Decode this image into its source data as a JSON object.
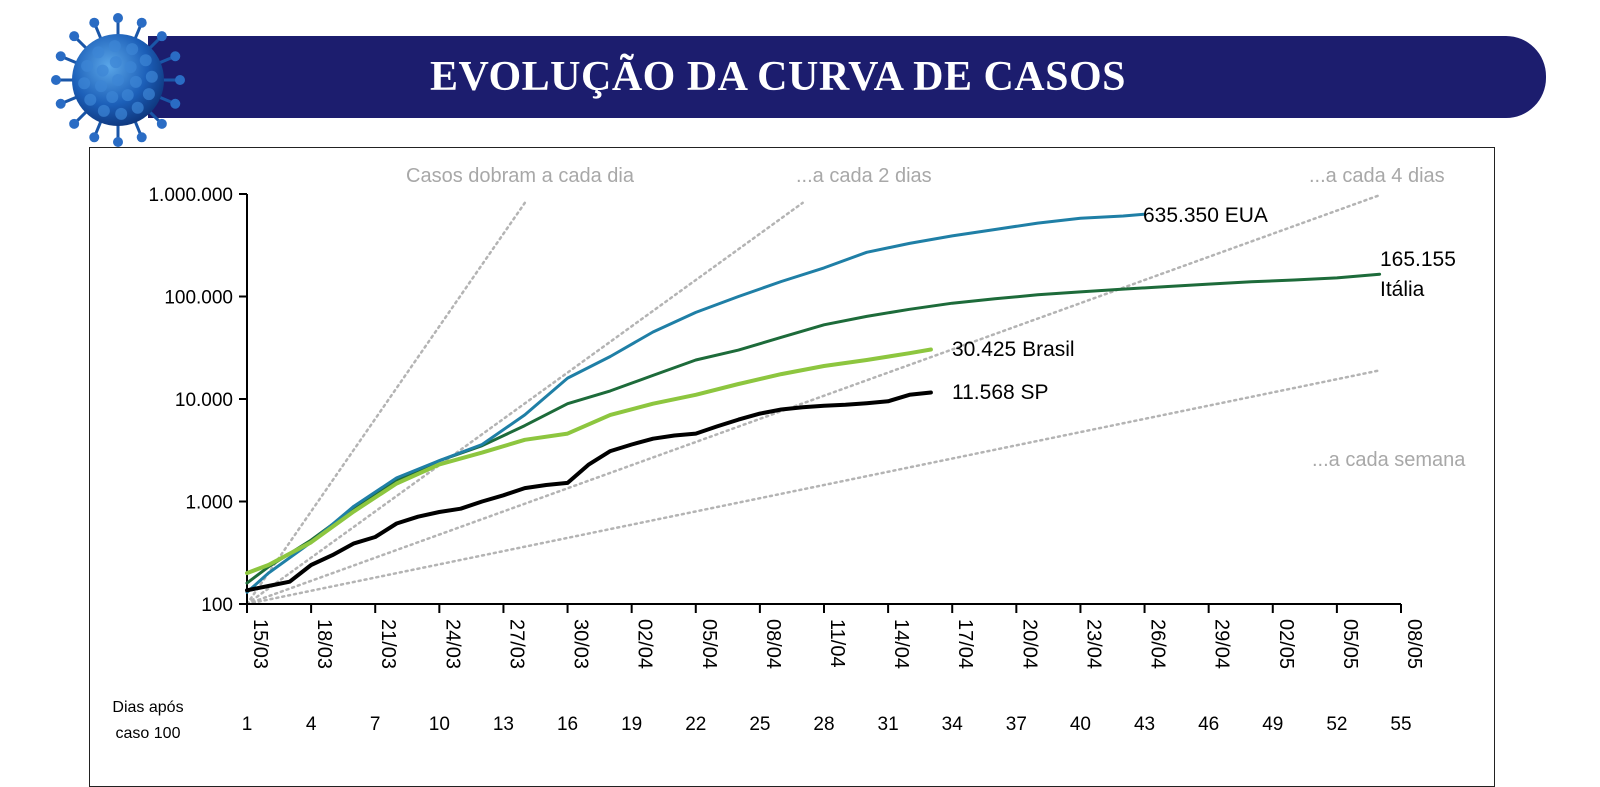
{
  "header": {
    "title": "EVOLUÇÃO DA CURVA DE CASOS",
    "icon": "coronavirus-icon",
    "banner_color": "#1c1d6e"
  },
  "chart_data": {
    "type": "line",
    "yscale": "log",
    "ylim": [
      100,
      1000000
    ],
    "y_ticks": [
      {
        "value": 100,
        "label": "100"
      },
      {
        "value": 1000,
        "label": "1.000"
      },
      {
        "value": 10000,
        "label": "10.000"
      },
      {
        "value": 100000,
        "label": "100.000"
      },
      {
        "value": 1000000,
        "label": "1.000.000"
      }
    ],
    "x_tick_days": [
      1,
      4,
      7,
      10,
      13,
      16,
      19,
      22,
      25,
      28,
      31,
      34,
      37,
      40,
      43,
      46,
      49,
      52,
      55
    ],
    "x_tick_dates": [
      "15/03",
      "18/03",
      "21/03",
      "24/03",
      "27/03",
      "30/03",
      "02/04",
      "05/04",
      "08/04",
      "11/04",
      "14/04",
      "17/04",
      "20/04",
      "23/04",
      "26/04",
      "29/04",
      "02/05",
      "05/05",
      "08/05"
    ],
    "xlim": [
      1,
      55
    ],
    "days_label_line1": "Dias após",
    "days_label_line2": "caso 100",
    "series": [
      {
        "name": "EUA",
        "label_value": "635.350",
        "label_name": "EUA",
        "color": "#1f7fa6",
        "x": [
          1,
          2,
          4,
          6,
          8,
          10,
          12,
          14,
          16,
          18,
          20,
          22,
          24,
          26,
          28,
          30,
          32,
          34,
          36,
          38,
          40,
          42,
          43
        ],
        "values": [
          130,
          200,
          400,
          900,
          1700,
          2500,
          3600,
          7000,
          16000,
          26000,
          45000,
          70000,
          100000,
          140000,
          190000,
          270000,
          330000,
          390000,
          450000,
          520000,
          580000,
          610000,
          635350
        ]
      },
      {
        "name": "Itália",
        "label_value": "165.155",
        "label_name": "Itália",
        "color": "#1d6b3a",
        "x": [
          1,
          2,
          4,
          6,
          8,
          10,
          12,
          14,
          16,
          18,
          20,
          22,
          24,
          26,
          28,
          30,
          32,
          34,
          36,
          38,
          40,
          42,
          44,
          46,
          48,
          50,
          52,
          54
        ],
        "values": [
          160,
          230,
          420,
          850,
          1600,
          2500,
          3500,
          5500,
          9000,
          12000,
          17000,
          24000,
          30000,
          40000,
          53000,
          64000,
          75000,
          86000,
          95000,
          104000,
          111000,
          118000,
          125000,
          132000,
          139000,
          145000,
          152000,
          165155
        ]
      },
      {
        "name": "Brasil",
        "label_value": "30.425",
        "label_name": "Brasil",
        "color": "#8dc63f",
        "x": [
          1,
          2,
          4,
          6,
          8,
          10,
          12,
          14,
          16,
          18,
          20,
          22,
          24,
          26,
          28,
          30,
          32,
          33
        ],
        "values": [
          200,
          240,
          400,
          800,
          1500,
          2300,
          3000,
          4000,
          4600,
          7000,
          9000,
          11000,
          14000,
          17500,
          21000,
          24000,
          28000,
          30425
        ]
      },
      {
        "name": "SP",
        "label_value": "11.568",
        "label_name": "SP",
        "color": "#000000",
        "x": [
          1,
          2,
          3,
          4,
          5,
          6,
          7,
          8,
          9,
          10,
          11,
          12,
          13,
          14,
          15,
          16,
          17,
          18,
          19,
          20,
          21,
          22,
          23,
          24,
          25,
          26,
          27,
          28,
          29,
          30,
          31,
          32,
          33
        ],
        "values": [
          136,
          150,
          165,
          240,
          300,
          390,
          450,
          610,
          710,
          790,
          850,
          1000,
          1150,
          1350,
          1450,
          1520,
          2300,
          3100,
          3600,
          4100,
          4400,
          4600,
          5400,
          6300,
          7200,
          7900,
          8300,
          8600,
          8800,
          9100,
          9500,
          11000,
          11568
        ]
      }
    ],
    "reference_lines": [
      {
        "name": "Casos dobram a cada dia",
        "label": "Casos dobram a cada dia",
        "doubling_days": 1,
        "end_day": 14
      },
      {
        "name": "a cada 2 dias",
        "label": "...a cada 2 dias",
        "doubling_days": 2,
        "end_day": 27
      },
      {
        "name": "a cada 4 dias",
        "label": "...a cada 4 dias",
        "doubling_days": 4,
        "end_day": 54
      },
      {
        "name": "a cada semana",
        "label": "...a cada semana",
        "doubling_days": 7,
        "end_day": 54
      }
    ],
    "reference_color": "#b4b4b4"
  }
}
